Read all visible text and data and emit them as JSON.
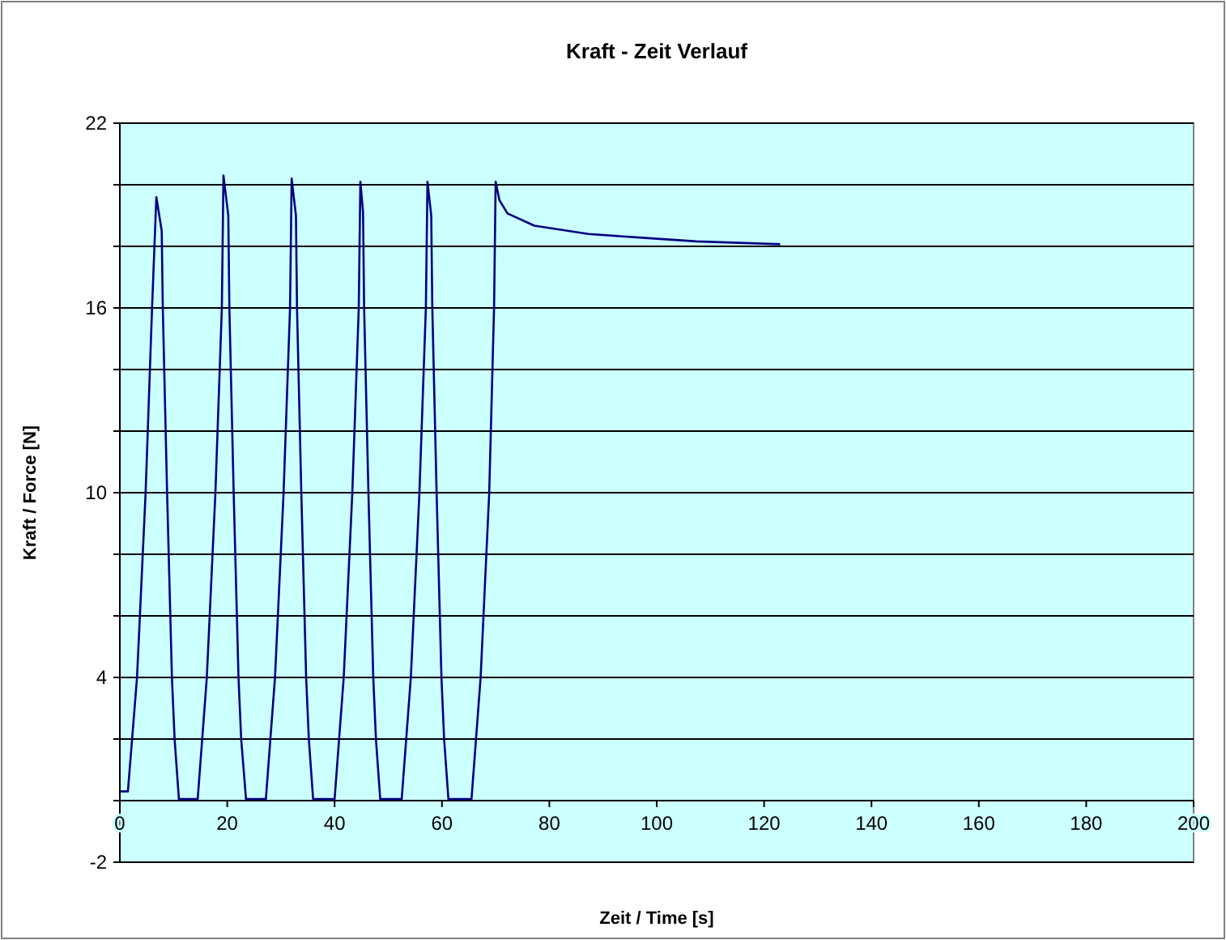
{
  "chart_data": {
    "type": "line",
    "title": "Kraft - Zeit Verlauf",
    "xlabel": "Zeit / Time [s]",
    "ylabel": "Kraft / Force [N]",
    "xlim": [
      0,
      200
    ],
    "xticks": [
      0,
      20,
      40,
      60,
      80,
      100,
      120,
      140,
      160,
      180,
      200
    ],
    "ylim": [
      -2,
      22
    ],
    "yticks": [
      -2,
      {
        "value": 0,
        "label": null
      },
      {
        "value": 2,
        "label": null
      },
      4,
      {
        "value": 6,
        "label": null
      },
      {
        "value": 8,
        "label": null
      },
      10,
      {
        "value": 12,
        "label": null
      },
      {
        "value": 14,
        "label": null
      },
      16,
      {
        "value": 18,
        "label": null
      },
      {
        "value": 20,
        "label": null
      },
      22
    ],
    "grid": "y",
    "marker": "none",
    "line_style": "solid",
    "series": [
      {
        "color": "#000080",
        "x": [
          0,
          1.5,
          3.2,
          4.8,
          6,
          6.8,
          7.8,
          8,
          8.8,
          9.7,
          10.2,
          11,
          14.5,
          16.2,
          17.8,
          19,
          19.3,
          20.2,
          20.4,
          21.2,
          22.1,
          22.6,
          23.5,
          27.2,
          28.9,
          30.5,
          31.7,
          32,
          32.8,
          33,
          33.8,
          34.7,
          35.2,
          36,
          40,
          41.7,
          43.3,
          44.5,
          44.8,
          45.3,
          45.5,
          46.3,
          47.2,
          47.7,
          48.5,
          52.5,
          54.2,
          55.8,
          57,
          57.3,
          58,
          58.2,
          59,
          59.9,
          60.4,
          61.2,
          65.5,
          67.2,
          68.8,
          69.7,
          70,
          70.7,
          72.2,
          77.2,
          87.3,
          97.3,
          107.4,
          123
        ],
        "values": [
          0.3,
          0.3,
          4,
          10,
          16,
          19.6,
          18.5,
          16,
          10,
          4,
          2,
          0.05,
          0.05,
          4,
          10,
          16,
          20.3,
          19,
          16,
          10,
          4,
          2,
          0.05,
          0.05,
          4,
          10,
          16,
          20.2,
          19,
          16,
          10,
          4,
          2,
          0.05,
          0.05,
          4,
          10,
          16,
          20.1,
          19.1,
          16,
          10,
          4,
          2,
          0.05,
          0.05,
          4,
          10,
          16,
          20.1,
          19,
          16,
          10,
          4,
          2,
          0.05,
          0.05,
          4,
          10,
          16,
          20.1,
          19.5,
          19.07,
          18.67,
          18.4,
          18.28,
          18.16,
          18.07
        ]
      }
    ]
  }
}
